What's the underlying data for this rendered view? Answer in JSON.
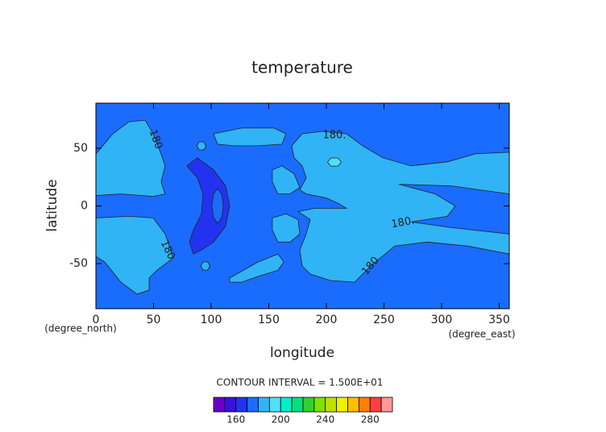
{
  "chart_data": {
    "type": "contour",
    "title": "temperature",
    "xlabel": "longitude",
    "ylabel": "latitude",
    "xunit": "(degree_east)",
    "yunit": "(degree_north)",
    "xlim": [
      0,
      358.75
    ],
    "ylim": [
      -89,
      89
    ],
    "xticks": [
      0,
      50,
      100,
      150,
      200,
      250,
      300,
      350
    ],
    "yticks": [
      -50,
      0,
      50
    ],
    "background_level": 170,
    "regions": [
      {
        "level": 180,
        "lon": [
          0,
          14.7,
          28.7,
          42.7,
          49.7,
          56.6,
          60.1,
          56.6,
          60.1,
          49.7,
          21.7,
          0
        ],
        "lat": [
          45,
          62.5,
          72.9,
          74.3,
          62.5,
          45,
          34.7,
          20.8,
          10.4,
          8.3,
          10.4,
          9
        ]
      },
      {
        "level": 180,
        "lon": [
          0,
          28.7,
          49.7,
          60.1,
          67.1,
          53.1,
          46.2,
          46.2,
          35.7,
          21.7,
          7.7,
          0
        ],
        "lat": [
          -10.4,
          -9,
          -10.4,
          -24.3,
          -45.1,
          -55.6,
          -62.5,
          -72.9,
          -76.4,
          -66,
          -48.6,
          -43.8
        ]
      },
      {
        "level": 180,
        "lon": [
          102,
          126.6,
          154.5,
          165,
          161.5,
          140.6,
          119.6,
          105.6
        ],
        "lat": [
          62.5,
          67.4,
          67.4,
          62.5,
          53.5,
          52.1,
          52.1,
          53.5
        ]
      },
      {
        "level": 180,
        "lon": [
          116,
          140.6,
          158,
          163,
          158,
          140.6,
          126.6,
          116
        ],
        "lat": [
          -62.5,
          -48.6,
          -41.7,
          -48.6,
          -55.6,
          -61.1,
          -66,
          -66
        ]
      },
      {
        "level": 180,
        "lon": [
          169.9,
          179,
          196.5,
          217.5,
          231.5,
          249,
          273.4,
          304.9,
          329.4,
          358.75,
          358.75,
          308.4,
          262.9,
          294.4,
          311.9,
          304.9,
          273.4,
          308.4,
          358.75,
          358.75,
          322.4,
          287.4,
          259.4,
          238.5,
          224.5,
          203.5,
          186,
          179,
          176.9,
          182.5,
          186,
          175.5,
          189.5,
          217.5,
          210.5,
          200,
          182.5,
          176.9,
          182.5,
          179,
          172
        ],
        "lat": [
          52.1,
          62.5,
          64.6,
          62.5,
          52.1,
          41.7,
          34.7,
          38.2,
          45.1,
          46.5,
          10.4,
          17.4,
          18.8,
          10.4,
          0,
          -9,
          -13.9,
          -18.8,
          -24.3,
          -41.7,
          -34.7,
          -31.3,
          -34.7,
          -52.1,
          -66,
          -64.6,
          -59,
          -52.1,
          -38.2,
          -24.3,
          -11.8,
          -4.9,
          -2.1,
          -2.1,
          2.1,
          6.9,
          10.4,
          13.9,
          24.3,
          34.7,
          41.7
        ]
      },
      {
        "level": 180,
        "lon": [
          153.1,
          161.5,
          172,
          176.9,
          168.5,
          158,
          153.1
        ],
        "lat": [
          31.3,
          34.7,
          27.8,
          16,
          10.4,
          10.4,
          20.8
        ]
      },
      {
        "level": 180,
        "lon": [
          153.1,
          165,
          175.5,
          176.9,
          168.5,
          158,
          153.1
        ],
        "lat": [
          -10.4,
          -6.9,
          -11.8,
          -24.3,
          -31.3,
          -31.3,
          -20.8
        ]
      },
      {
        "level": 180,
        "lon": [
          87.6,
          89.6,
          93.6,
          95.6,
          93.6,
          89.6
        ],
        "lat": [
          52,
          55.5,
          55.5,
          52,
          48.5,
          48.5
        ]
      },
      {
        "level": 180,
        "lon": [
          91,
          93,
          97,
          99,
          97,
          93
        ],
        "lat": [
          -52,
          -48.5,
          -48.5,
          -52,
          -55.5,
          -55.5
        ]
      },
      {
        "level": 190,
        "lon": [
          201,
          204,
          210,
          213,
          210,
          204
        ],
        "lat": [
          38,
          41.5,
          41.5,
          38,
          34.5,
          34.5
        ]
      },
      {
        "level": 160,
        "lon": [
          79,
          88.1,
          102.1,
          112.6,
          116.1,
          112.6,
          102.1,
          91.6,
          84.6,
          81.1,
          84.6,
          91.6,
          93,
          88.1
        ],
        "lat": [
          34.7,
          41.7,
          31.3,
          17.4,
          0,
          -17.4,
          -31.3,
          -38.2,
          -41.7,
          -31.3,
          -20.8,
          -6.9,
          10.4,
          24.3
        ]
      },
      {
        "level": 170,
        "lon": [
          100.6,
          102,
          105.6,
          109.2,
          110.6,
          109.2,
          105.6,
          102
        ],
        "lat": [
          0,
          10,
          15,
          10,
          0,
          -10,
          -15,
          -10
        ]
      }
    ],
    "contour_labels": [
      {
        "text": "180",
        "lon": 51.7,
        "lat": 57.6
      },
      {
        "text": "180.",
        "lon": 207,
        "lat": 61.1
      },
      {
        "text": "180",
        "lon": 62.2,
        "lat": -38.2
      },
      {
        "text": "180.",
        "lon": 266.4,
        "lat": -14.6
      },
      {
        "text": "180",
        "lon": 238.5,
        "lat": -52.1
      }
    ],
    "contour_interval": "CONTOUR INTERVAL = 1.500E+01",
    "colorbar": {
      "levels": [
        140,
        150,
        160,
        170,
        180,
        190,
        200,
        210,
        220,
        230,
        240,
        250,
        260,
        270,
        280,
        290,
        300
      ],
      "colors": [
        "#6a00c8",
        "#3a10e0",
        "#2233f0",
        "#1a6cff",
        "#30b4f5",
        "#50e0f8",
        "#00f0c8",
        "#00e080",
        "#30d030",
        "#80e000",
        "#c0e000",
        "#f0f000",
        "#ffc000",
        "#ff8000",
        "#ff4040",
        "#ff9898"
      ],
      "ticks": [
        160,
        200,
        240,
        280
      ]
    }
  }
}
